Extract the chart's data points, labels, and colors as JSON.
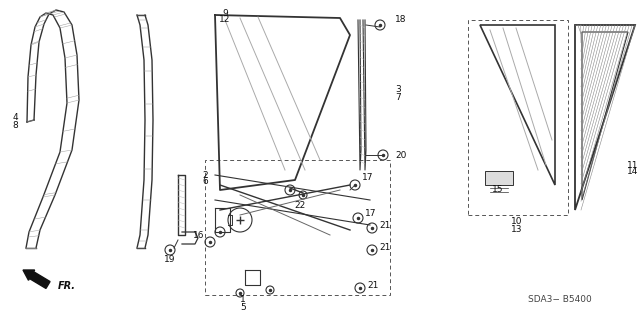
{
  "background_color": "#ffffff",
  "fig_width": 6.4,
  "fig_height": 3.19,
  "dpi": 100,
  "lc": "#333333",
  "label_fontsize": 6.5,
  "footer_text": "SDA3− B5400",
  "fr_label": "FR."
}
